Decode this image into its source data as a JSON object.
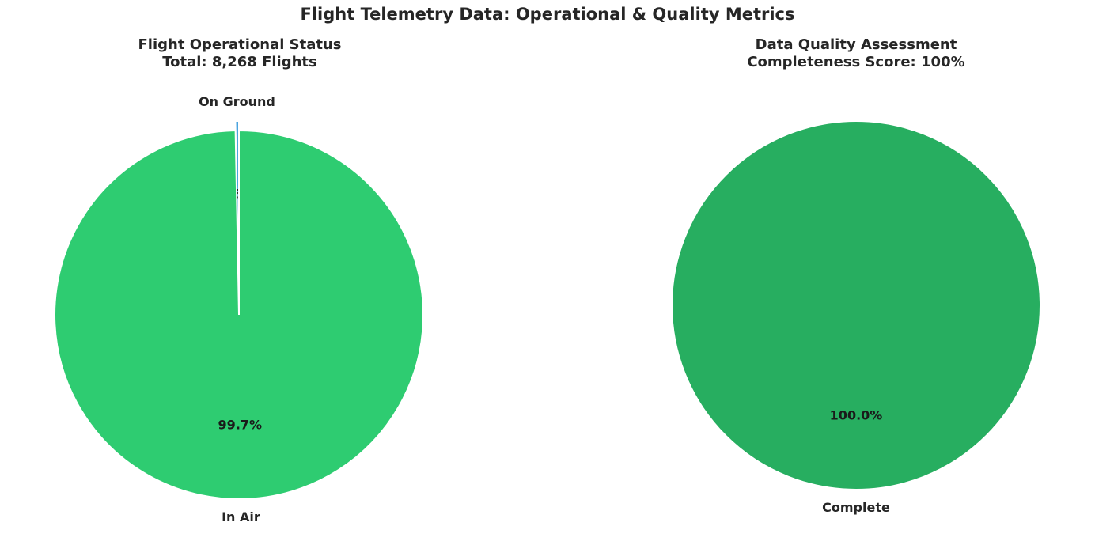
{
  "figure_title": "Flight Telemetry Data: Operational & Quality Metrics",
  "chart_data": [
    {
      "type": "pie",
      "title_line1": "Flight Operational Status",
      "title_line2": "Total: 8,268 Flights",
      "slices": [
        {
          "label": "On Ground",
          "value": 0.3,
          "pct_label": "0.3%",
          "color": "#3498db",
          "exploded": true
        },
        {
          "label": "In Air",
          "value": 99.7,
          "pct_label": "99.7%",
          "color": "#2ecc71",
          "exploded": false
        }
      ]
    },
    {
      "type": "pie",
      "title_line1": "Data Quality Assessment",
      "title_line2": "Completeness Score: 100%",
      "slices": [
        {
          "label": "Complete",
          "value": 100.0,
          "pct_label": "100.0%",
          "color": "#27ae60",
          "exploded": false
        }
      ]
    }
  ]
}
